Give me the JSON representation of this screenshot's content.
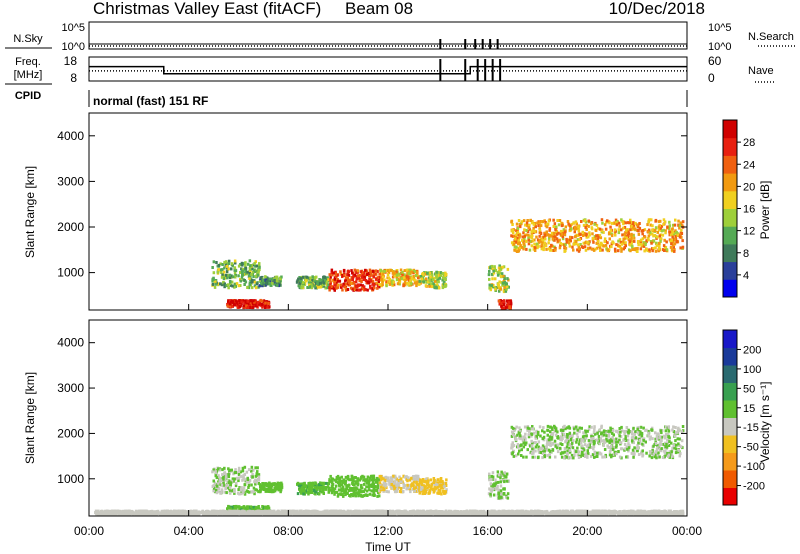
{
  "header": {
    "site": "Christmas Valley East (fitACF)",
    "beam": "Beam 08",
    "date": "10/Dec/2018"
  },
  "status_panels": {
    "nsky_label": "N.Sky",
    "nsky_ticks": [
      "10^5",
      "10^0"
    ],
    "nsearch_label": "N.Search",
    "nsearch_ticks": [
      "10^5",
      "10^0"
    ],
    "freq_label_1": "Freq.",
    "freq_label_2": "[MHz]",
    "freq_ticks": [
      "18",
      "8"
    ],
    "nave_label": "Nave",
    "nave_ticks": [
      "60",
      "0"
    ],
    "cpid_label": "CPID",
    "cpid_text": "normal (fast) 151 RF"
  },
  "colors": {
    "power_scale": [
      "#0000ee",
      "#2a3f9a",
      "#3f7a5a",
      "#55aa55",
      "#9ecf3a",
      "#f0d020",
      "#f29a10",
      "#f06010",
      "#e82010",
      "#d00000"
    ],
    "velocity_scale": [
      "#e80000",
      "#f05a00",
      "#f59a1a",
      "#f0c020",
      "#c8c8c0",
      "#60c030",
      "#38a050",
      "#2a6a70",
      "#1a3a9a",
      "#1818c8"
    ],
    "ground_scatter": "#b8b8b0"
  },
  "chart_data": [
    {
      "type": "heatmap",
      "name": "power",
      "xlabel": "",
      "ylabel": "Slant Range [km]",
      "x_range_hours": [
        0,
        24
      ],
      "ylim": [
        180,
        4500
      ],
      "yticks": [
        1000,
        2000,
        3000,
        4000
      ],
      "colorbar_label": "Power [dB]",
      "colorbar_ticks": [
        "4",
        "8",
        "12",
        "16",
        "20",
        "24",
        "28"
      ],
      "colorbar_range": [
        0,
        32
      ],
      "scatter_regions": [
        {
          "t0": 4.9,
          "t1": 6.8,
          "r_low": 650,
          "r_high": 1250,
          "level": 12
        },
        {
          "t0": 6.8,
          "t1": 7.7,
          "r_low": 700,
          "r_high": 900,
          "level": 10
        },
        {
          "t0": 8.3,
          "t1": 9.6,
          "r_low": 650,
          "r_high": 900,
          "level": 12
        },
        {
          "t0": 9.6,
          "t1": 11.6,
          "r_low": 600,
          "r_high": 1050,
          "level": 27
        },
        {
          "t0": 11.6,
          "t1": 13.2,
          "r_low": 700,
          "r_high": 1050,
          "level": 19
        },
        {
          "t0": 13.2,
          "t1": 14.3,
          "r_low": 650,
          "r_high": 1000,
          "level": 15
        },
        {
          "t0": 16.0,
          "t1": 16.8,
          "r_low": 550,
          "r_high": 1150,
          "level": 15
        },
        {
          "t0": 16.9,
          "t1": 23.8,
          "r_low": 1450,
          "r_high": 2150,
          "level": 20
        },
        {
          "t0": 5.5,
          "t1": 7.2,
          "r_low": 220,
          "r_high": 380,
          "level": 29
        },
        {
          "t0": 16.4,
          "t1": 16.9,
          "r_low": 200,
          "r_high": 380,
          "level": 29
        }
      ]
    },
    {
      "type": "heatmap",
      "name": "velocity",
      "xlabel": "Time UT",
      "ylabel": "Slant Range [km]",
      "x_range_hours": [
        0,
        24
      ],
      "xticks": [
        "00:00",
        "04:00",
        "08:00",
        "12:00",
        "16:00",
        "20:00",
        "00:00"
      ],
      "ylim": [
        180,
        4500
      ],
      "yticks": [
        1000,
        2000,
        3000,
        4000
      ],
      "colorbar_label": "Velocity [m s⁻¹]",
      "colorbar_ticks": [
        "-200",
        "-100",
        "-50",
        "-15",
        "15",
        "50",
        "100",
        "200"
      ],
      "colorbar_range": [
        -250,
        250
      ],
      "scatter_regions": [
        {
          "t0": 4.9,
          "t1": 6.8,
          "r_low": 650,
          "r_high": 1250,
          "level": 0
        },
        {
          "t0": 6.8,
          "t1": 7.7,
          "r_low": 700,
          "r_high": 900,
          "level": 30
        },
        {
          "t0": 8.3,
          "t1": 9.6,
          "r_low": 650,
          "r_high": 900,
          "level": 40
        },
        {
          "t0": 9.6,
          "t1": 11.6,
          "r_low": 600,
          "r_high": 1050,
          "level": 35
        },
        {
          "t0": 11.6,
          "t1": 13.2,
          "r_low": 700,
          "r_high": 1050,
          "level": -45
        },
        {
          "t0": 13.2,
          "t1": 14.3,
          "r_low": 650,
          "r_high": 1000,
          "level": -60
        },
        {
          "t0": 16.0,
          "t1": 16.8,
          "r_low": 550,
          "r_high": 1150,
          "level": 0
        },
        {
          "t0": 16.9,
          "t1": 23.8,
          "r_low": 1450,
          "r_high": 2150,
          "level": 0
        },
        {
          "t0": 5.5,
          "t1": 7.2,
          "r_low": 220,
          "r_high": 380,
          "level": 40
        },
        {
          "t0": 0.2,
          "t1": 23.8,
          "r_low": 190,
          "r_high": 280,
          "level": -30
        }
      ]
    }
  ]
}
